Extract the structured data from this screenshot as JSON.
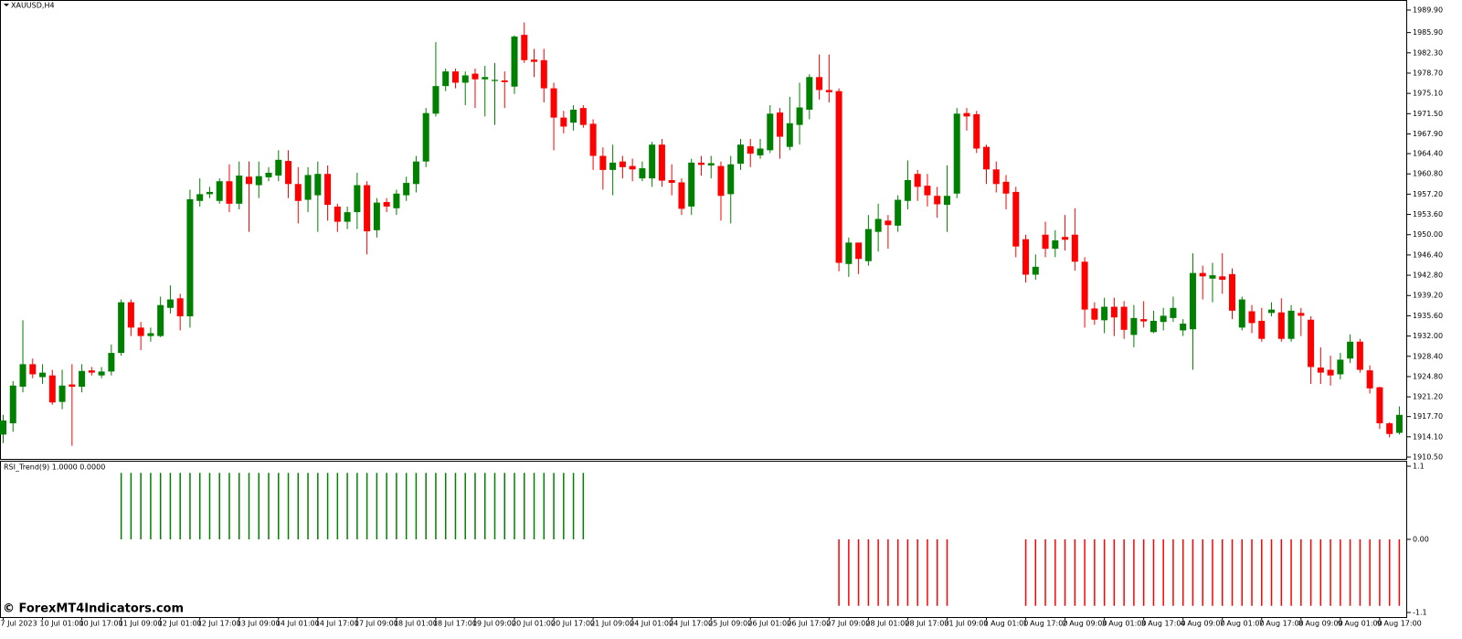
{
  "chart_data": [
    {
      "type": "candlestick",
      "title": "XAUUSD,H4",
      "categories": [
        "7 Jul 2023",
        null,
        null,
        null,
        "10 Jul 01:00",
        null,
        null,
        null,
        "10 Jul 17:00",
        null,
        null,
        null,
        "11 Jul 09:00",
        null,
        null,
        null,
        "12 Jul 01:00",
        null,
        null,
        null,
        "12 Jul 17:00",
        null,
        null,
        null,
        "13 Jul 09:00",
        null,
        null,
        null,
        "14 Jul 01:00",
        null,
        null,
        null,
        "14 Jul 17:00",
        null,
        null,
        null,
        "17 Jul 09:00",
        null,
        null,
        null,
        "18 Jul 01:00",
        null,
        null,
        null,
        "18 Jul 17:00",
        null,
        null,
        null,
        "19 Jul 09:00",
        null,
        null,
        null,
        "20 Jul 01:00",
        null,
        null,
        null,
        "20 Jul 17:00",
        null,
        null,
        null,
        "21 Jul 09:00",
        null,
        null,
        null,
        "24 Jul 01:00",
        null,
        null,
        null,
        "24 Jul 17:00",
        null,
        null,
        null,
        "25 Jul 09:00",
        null,
        null,
        null,
        "26 Jul 01:00",
        null,
        null,
        null,
        "26 Jul 17:00",
        null,
        null,
        null,
        "27 Jul 09:00",
        null,
        null,
        null,
        "28 Jul 01:00",
        null,
        null,
        null,
        "28 Jul 17:00",
        null,
        null,
        null,
        "31 Jul 09:00",
        null,
        null,
        null,
        "1 Aug 01:00",
        null,
        null,
        null,
        "1 Aug 17:00",
        null,
        null,
        null,
        "2 Aug 09:00",
        null,
        null,
        null,
        "3 Aug 01:00",
        null,
        null,
        null,
        "3 Aug 17:00",
        null,
        null,
        null,
        "4 Aug 09:00",
        null,
        null,
        null,
        "7 Aug 01:00",
        null,
        null,
        null,
        "7 Aug 17:00",
        null,
        null,
        null,
        "8 Aug 09:00",
        null,
        null,
        null,
        "9 Aug 01:00",
        null,
        null,
        null,
        "9 Aug 17:00",
        null,
        null
      ],
      "open": [
        1914.5,
        1916.5,
        1923,
        1927,
        1924.7,
        1925,
        1920.3,
        1923.4,
        1923,
        1925.9,
        1925,
        1925.7,
        1929,
        1938,
        1933.5,
        1932,
        1932,
        1937,
        1938.7,
        1935.5,
        1956,
        1957.2,
        1956,
        1959.5,
        1955.5,
        1960.3,
        1958.8,
        1960.2,
        1960.5,
        1963.1,
        1959,
        1956.2,
        1957,
        1960.8,
        1955,
        1952.3,
        1954,
        1958.8,
        1950.8,
        1955.8,
        1954.7,
        1957,
        1959,
        1963,
        1971.5,
        1976.4,
        1979,
        1977,
        1978.6,
        1977.6,
        1977.3,
        1977.4,
        1976.3,
        1985.5,
        1981.1,
        1981,
        1976,
        1970.8,
        1969.9,
        1972.5,
        1969.7,
        1964,
        1961.5,
        1963,
        1962.2,
        1960,
        1960,
        1966,
        1959.7,
        1959.3,
        1955,
        1962.8,
        1962.3,
        1962.2,
        1957.2,
        1962.6,
        1965.7,
        1964.1,
        1965,
        1971.7,
        1965.6,
        1969.5,
        1972.2,
        1978,
        1975.7,
        1975.5,
        1944.8,
        1948.6,
        1945.3,
        1950.5,
        1952.5,
        1951.6,
        1956,
        1960.8,
        1958.7,
        1956.9,
        1955.3,
        1957.3,
        1971.6,
        1971.4,
        1965.6,
        1961.6,
        1959.4,
        1957.6,
        1949.2,
        1942.9,
        1950,
        1947.5,
        1949.6,
        1950,
        1945.2,
        1936.9,
        1934.8,
        1937.2,
        1937.2,
        1932.2,
        1935,
        1932.7,
        1934.5,
        1935.2,
        1933,
        1933.2,
        1943.2,
        1942.2,
        1942.6,
        1943,
        1933.5,
        1936.4,
        1934.7,
        1936.1,
        1936.2,
        1931.5,
        1936.1,
        1934.9,
        1926.4,
        1926,
        1925.2,
        1928,
        1931,
        1925.9,
        1922.9,
        1916.5,
        1914.8
      ],
      "high": [
        1918,
        1924,
        1934.8,
        1928,
        1927,
        1926,
        1926,
        1927,
        1927,
        1926.5,
        1926.5,
        1930.5,
        1938.5,
        1938.5,
        1934.5,
        1933.5,
        1939,
        1941,
        1939.5,
        1958,
        1960,
        1958.5,
        1960,
        1962.5,
        1963,
        1963,
        1963,
        1962,
        1965,
        1965,
        1962,
        1962,
        1963,
        1962.3,
        1955.5,
        1955,
        1961,
        1959.5,
        1956.5,
        1956.5,
        1958,
        1960.3,
        1964,
        1972.5,
        1984.2,
        1979.5,
        1979.5,
        1979,
        1979.5,
        1980,
        1980.5,
        1979,
        1985.4,
        1987.7,
        1983,
        1983,
        1977,
        1972,
        1973,
        1973,
        1970.5,
        1965.5,
        1966,
        1964,
        1963.5,
        1963,
        1966.5,
        1967,
        1962.5,
        1960,
        1963.5,
        1964,
        1964,
        1963,
        1964,
        1967,
        1967,
        1967,
        1973,
        1972.5,
        1974.5,
        1977,
        1978.5,
        1982,
        1982,
        1976,
        1949.5,
        1948.6,
        1953.5,
        1955.5,
        1953.5,
        1957,
        1963.2,
        1961.5,
        1960.8,
        1958.5,
        1962.3,
        1972.5,
        1972.5,
        1972,
        1966,
        1963,
        1960.6,
        1958.5,
        1950,
        1946.5,
        1952.3,
        1950.8,
        1953.5,
        1954.7,
        1946,
        1938,
        1938.8,
        1938.8,
        1938.2,
        1937.5,
        1938.2,
        1936.5,
        1937,
        1939,
        1935,
        1946.7,
        1944.5,
        1945,
        1946.7,
        1944,
        1939,
        1937.5,
        1937,
        1938,
        1938.7,
        1937.5,
        1937,
        1935.5,
        1930,
        1928.5,
        1929,
        1932.3,
        1931.5,
        1926.8,
        1923,
        1916.7,
        1919.5
      ],
      "low": [
        1913,
        1915,
        1922,
        1924.5,
        1923.5,
        1919.8,
        1919,
        1912.5,
        1922,
        1925,
        1924.5,
        1925,
        1928.5,
        1932,
        1929.5,
        1931,
        1931.8,
        1936,
        1933,
        1933.5,
        1955,
        1956.5,
        1955.5,
        1954,
        1954.5,
        1950.5,
        1956.5,
        1959.5,
        1959.5,
        1956.5,
        1952,
        1954,
        1950.5,
        1952.5,
        1950.5,
        1951,
        1951,
        1946.5,
        1949.5,
        1954,
        1953.5,
        1956,
        1957.5,
        1962,
        1971,
        1975.5,
        1976,
        1973,
        1972.5,
        1971,
        1969.5,
        1972.5,
        1975,
        1980.5,
        1978,
        1973.5,
        1965,
        1968,
        1968.5,
        1969,
        1961.5,
        1958,
        1957,
        1960,
        1959.5,
        1959.5,
        1958.5,
        1958.5,
        1957,
        1953.5,
        1953.5,
        1960.5,
        1960,
        1952.5,
        1952,
        1961.5,
        1962,
        1963.5,
        1964.5,
        1963.5,
        1965,
        1966,
        1970.5,
        1974,
        1973.5,
        1943.5,
        1942.5,
        1943,
        1944.5,
        1947,
        1947.5,
        1950.5,
        1954.5,
        1956,
        1955,
        1953,
        1950.5,
        1956.5,
        1968.5,
        1964.5,
        1959,
        1957.5,
        1954.5,
        1946,
        1941.5,
        1942,
        1946,
        1946,
        1947.2,
        1943.6,
        1933.5,
        1934,
        1932.5,
        1932,
        1931.5,
        1930,
        1933.5,
        1932.5,
        1933,
        1934.5,
        1932,
        1926,
        1938.5,
        1938,
        1939.5,
        1935,
        1933,
        1932.5,
        1931,
        1935.5,
        1931,
        1931,
        1932,
        1923.5,
        1923.5,
        1923.2,
        1924.3,
        1927.2,
        1925.5,
        1921.8,
        1915.5,
        1914,
        1914.5
      ],
      "close": [
        1917,
        1923.2,
        1927,
        1925.2,
        1925.5,
        1920.2,
        1923.2,
        1923,
        1925.8,
        1925.5,
        1925.7,
        1929,
        1938,
        1933.5,
        1932,
        1932.5,
        1937.5,
        1938.5,
        1935.5,
        1956.3,
        1957.2,
        1957.6,
        1959.5,
        1955.5,
        1960.5,
        1959,
        1960.4,
        1961,
        1963.3,
        1959,
        1956,
        1960.6,
        1960.8,
        1955.3,
        1952.3,
        1954,
        1958.8,
        1950.6,
        1955.7,
        1955,
        1957.3,
        1959.2,
        1963,
        1971.6,
        1976.4,
        1979,
        1977,
        1978.3,
        1977.6,
        1978,
        1977.5,
        1977.1,
        1985.2,
        1981,
        1980.7,
        1976,
        1970.8,
        1969.2,
        1972.2,
        1969.5,
        1964,
        1961.5,
        1962.8,
        1962,
        1961.6,
        1961.8,
        1966,
        1959.6,
        1959.2,
        1954.6,
        1962.8,
        1962.4,
        1962.7,
        1956.9,
        1962.5,
        1966,
        1964.4,
        1965.3,
        1971.5,
        1967.4,
        1969.8,
        1972.6,
        1978,
        1975.7,
        1975.3,
        1945,
        1948.6,
        1945.7,
        1951,
        1952.8,
        1951.7,
        1956.2,
        1959.7,
        1958.5,
        1957,
        1955.4,
        1956.9,
        1971.5,
        1971,
        1965.3,
        1961.6,
        1959,
        1957.3,
        1947.9,
        1942.9,
        1944.3,
        1947.5,
        1949,
        1949.1,
        1945.2,
        1936.7,
        1934.9,
        1937.2,
        1935.3,
        1933.1,
        1935.2,
        1934.6,
        1934.7,
        1935.6,
        1937,
        1934.2,
        1943.2,
        1942.6,
        1942.8,
        1942,
        1936.5,
        1938.5,
        1934.3,
        1931.5,
        1936.7,
        1931.5,
        1936.5,
        1935.6,
        1926.5,
        1925.5,
        1925,
        1927.8,
        1931,
        1926,
        1922.7,
        1916.5,
        1914.6,
        1918
      ],
      "up_color": "#008000",
      "down_color": "#ff0000",
      "ylim": [
        1910.5,
        1989.9
      ],
      "yticks": [
        {
          "value": 1989.9,
          "label": "1989.90"
        },
        {
          "value": 1985.9,
          "label": "1985.90"
        },
        {
          "value": 1982.3,
          "label": "1982.30"
        },
        {
          "value": 1978.7,
          "label": "1978.70"
        },
        {
          "value": 1975.1,
          "label": "1975.10"
        },
        {
          "value": 1971.5,
          "label": "1971.50"
        },
        {
          "value": 1967.9,
          "label": "1967.90"
        },
        {
          "value": 1964.4,
          "label": "1964.40"
        },
        {
          "value": 1960.8,
          "label": "1960.80"
        },
        {
          "value": 1957.2,
          "label": "1957.20"
        },
        {
          "value": 1953.6,
          "label": "1953.60"
        },
        {
          "value": 1950,
          "label": "1950.00"
        },
        {
          "value": 1946.4,
          "label": "1946.40"
        },
        {
          "value": 1942.8,
          "label": "1942.80"
        },
        {
          "value": 1939.2,
          "label": "1939.20"
        },
        {
          "value": 1935.6,
          "label": "1935.60"
        },
        {
          "value": 1932,
          "label": "1932.00"
        },
        {
          "value": 1928.4,
          "label": "1928.40"
        },
        {
          "value": 1924.8,
          "label": "1924.80"
        },
        {
          "value": 1921.2,
          "label": "1921.20"
        },
        {
          "value": 1917.7,
          "label": "1917.70"
        },
        {
          "value": 1914.1,
          "label": "1914.10"
        },
        {
          "value": 1910.5,
          "label": "1910.50"
        }
      ]
    },
    {
      "type": "bar",
      "title": "RSI_Trend(9) 1.0000 0.0000",
      "values": [
        0,
        0,
        0,
        0,
        0,
        0,
        0,
        0,
        0,
        0,
        0,
        0,
        1,
        1,
        1,
        1,
        1,
        1,
        1,
        1,
        1,
        1,
        1,
        1,
        1,
        1,
        1,
        1,
        1,
        1,
        1,
        1,
        1,
        1,
        1,
        1,
        1,
        1,
        1,
        1,
        1,
        1,
        1,
        1,
        1,
        1,
        1,
        1,
        1,
        1,
        1,
        1,
        1,
        1,
        1,
        1,
        1,
        1,
        1,
        1,
        0,
        0,
        0,
        0,
        0,
        0,
        0,
        0,
        0,
        0,
        0,
        0,
        0,
        0,
        0,
        0,
        0,
        0,
        0,
        0,
        0,
        0,
        0,
        0,
        0,
        -1,
        -1,
        -1,
        -1,
        -1,
        -1,
        -1,
        -1,
        -1,
        -1,
        -1,
        -1,
        0,
        0,
        0,
        0,
        0,
        0,
        0,
        -1,
        -1,
        -1,
        -1,
        -1,
        -1,
        -1,
        -1,
        -1,
        -1,
        -1,
        -1,
        -1,
        -1,
        -1,
        -1,
        -1,
        -1,
        -1,
        -1,
        -1,
        -1,
        -1,
        -1,
        -1,
        -1,
        -1,
        -1,
        -1,
        -1,
        -1,
        -1,
        -1,
        -1,
        -1,
        -1,
        -1,
        -1,
        -1
      ],
      "positive_color": "#008000",
      "negative_color": "#ff0000",
      "ylim": [
        -1.1,
        1.1
      ],
      "yticks": [
        1.1,
        {
          "value": 0,
          "label": "0.00"
        },
        -1.1
      ]
    }
  ],
  "watermark": "© ForexMT4Indicators.com"
}
